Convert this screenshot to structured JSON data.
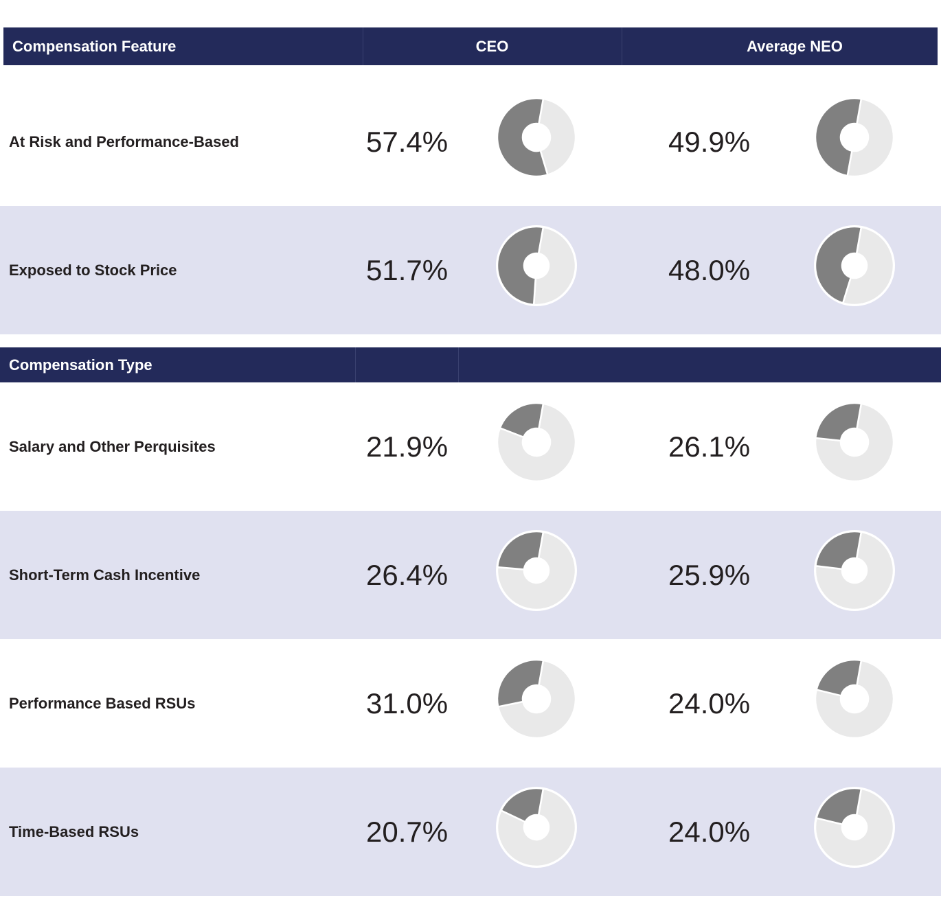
{
  "colors": {
    "header_bg": "#232a5a",
    "alt_row_bg": "#e0e1f0",
    "slice_dark": "#808080",
    "slice_light": "#e9e9e9"
  },
  "feature_header": {
    "label": "Compensation Feature",
    "ceo": "CEO",
    "neo": "Average NEO"
  },
  "type_header": {
    "label": "Compensation Type"
  },
  "feature_rows": [
    {
      "label": "At Risk and Performance-Based",
      "ceo_text": "57.4%",
      "neo_text": "49.9%"
    },
    {
      "label": "Exposed to Stock Price",
      "ceo_text": "51.7%",
      "neo_text": "48.0%"
    }
  ],
  "type_rows": [
    {
      "label": "Salary and Other Perquisites",
      "ceo_text": "21.9%",
      "neo_text": "26.1%"
    },
    {
      "label": "Short-Term Cash Incentive",
      "ceo_text": "26.4%",
      "neo_text": "25.9%"
    },
    {
      "label": "Performance Based RSUs",
      "ceo_text": "31.0%",
      "neo_text": "24.0%"
    },
    {
      "label": "Time-Based RSUs",
      "ceo_text": "20.7%",
      "neo_text": "24.0%"
    }
  ],
  "chart_data": {
    "type": "pie",
    "subtype": "donut",
    "series": [
      {
        "name": "CEO",
        "values": [
          57.4,
          51.7,
          21.9,
          26.4,
          31.0,
          20.7
        ]
      },
      {
        "name": "Average NEO",
        "values": [
          49.9,
          48.0,
          26.1,
          25.9,
          24.0,
          24.0
        ]
      }
    ],
    "categories": [
      "At Risk and Performance-Based",
      "Exposed to Stock Price",
      "Salary and Other Perquisites",
      "Short-Term Cash Incentive",
      "Performance Based RSUs",
      "Time-Based RSUs"
    ],
    "title": "",
    "xlabel": "",
    "ylabel": ""
  }
}
